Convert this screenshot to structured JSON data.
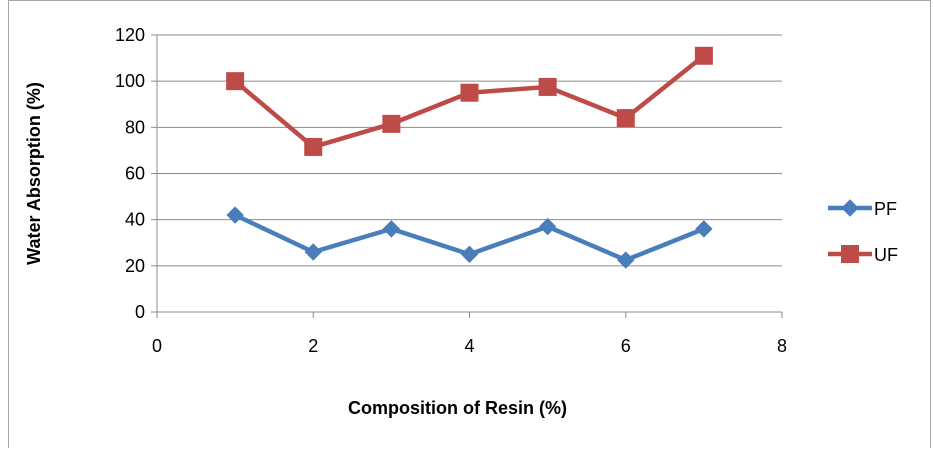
{
  "chart_data": {
    "type": "line",
    "xlabel": "Composition  of Resin (%)",
    "ylabel": "Water Absorption (%)",
    "xlim": [
      0,
      8
    ],
    "ylim": [
      0,
      120
    ],
    "xticks": [
      0,
      2,
      4,
      6,
      8
    ],
    "yticks": [
      0,
      20,
      40,
      60,
      80,
      100,
      120
    ],
    "grid": "horizontal",
    "legend_position": "right",
    "series": [
      {
        "name": "PF",
        "color": "#4a7ebb",
        "marker": "diamond",
        "x": [
          1,
          2,
          3,
          4,
          5,
          6,
          7
        ],
        "y": [
          42,
          26,
          36,
          25,
          37,
          22.5,
          36
        ]
      },
      {
        "name": "UF",
        "color": "#be4b48",
        "marker": "square",
        "x": [
          1,
          2,
          3,
          4,
          5,
          6,
          7
        ],
        "y": [
          100,
          71.5,
          81.5,
          95,
          97.5,
          84,
          111
        ]
      }
    ]
  }
}
